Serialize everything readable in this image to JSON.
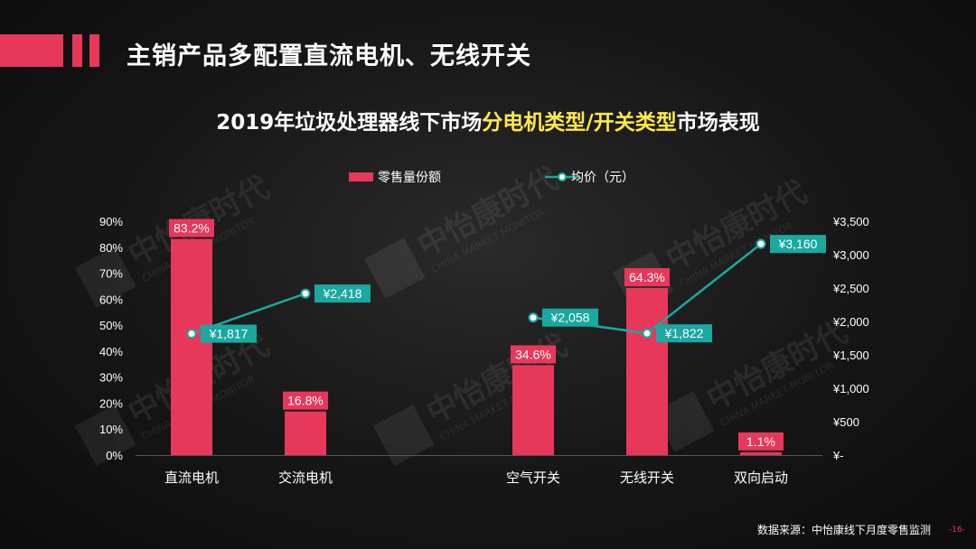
{
  "page": {
    "title": "主销产品多配置直流电机、无线开关",
    "source": "数据来源：中怡康线下月度零售监测",
    "page_number": "-16-",
    "watermark_cn": "中怡康时代",
    "watermark_en": "CHINA MARKET MONITOR",
    "watermark_logo": "CMM"
  },
  "colors": {
    "accent": "#e8385a",
    "line": "#1aa8a0",
    "highlight": "#ffe94a"
  },
  "chart_data": {
    "type": "bar+line",
    "title_parts": [
      "2019年垃圾处理器线下市场",
      "分电机类型/开关类型",
      "市场表现"
    ],
    "categories": [
      "直流电机",
      "交流电机",
      "空气开关",
      "无线开关",
      "双向启动"
    ],
    "series": [
      {
        "name": "零售量份额",
        "type": "bar",
        "axis": "left",
        "values": [
          83.2,
          16.8,
          34.6,
          64.3,
          1.1
        ],
        "labels": [
          "83.2%",
          "16.8%",
          "34.6%",
          "64.3%",
          "1.1%"
        ]
      },
      {
        "name": "均价（元）",
        "type": "line",
        "axis": "right",
        "values": [
          1817,
          2418,
          2058,
          1822,
          3160
        ],
        "labels": [
          "¥1,817",
          "¥2,418",
          "¥2,058",
          "¥1,822",
          "¥3,160"
        ],
        "segments": [
          [
            0,
            1
          ],
          [
            2,
            3,
            4
          ]
        ]
      }
    ],
    "y_left": {
      "range": [
        0,
        90
      ],
      "ticks": [
        "0%",
        "10%",
        "20%",
        "30%",
        "40%",
        "50%",
        "60%",
        "70%",
        "80%",
        "90%"
      ]
    },
    "y_right": {
      "range": [
        0,
        3500
      ],
      "ticks": [
        "¥-",
        "¥500",
        "¥1,000",
        "¥1,500",
        "¥2,000",
        "¥2,500",
        "¥3,000",
        "¥3,500"
      ]
    },
    "grid": false,
    "legend": "top-center"
  }
}
